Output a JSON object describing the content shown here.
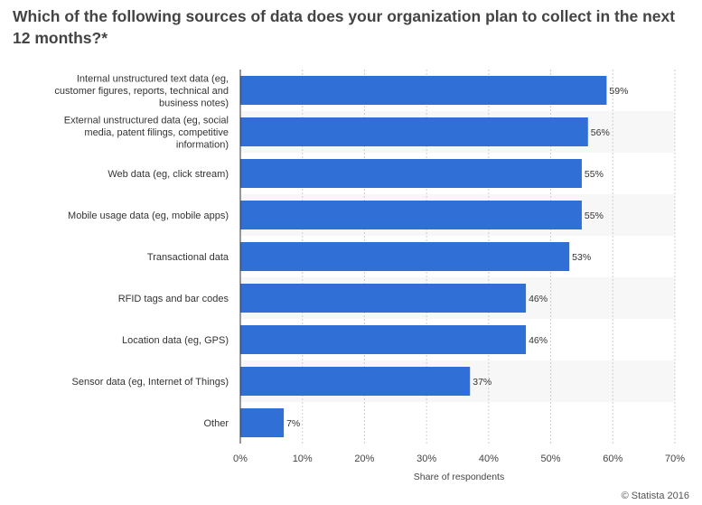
{
  "chart_data": {
    "type": "bar",
    "orientation": "horizontal",
    "title": "Which of the following sources of data does your organization plan to collect in the next 12 months?*",
    "categories": [
      [
        "Internal unstructured text data (eg,",
        "customer figures, reports, technical and",
        "business notes)"
      ],
      [
        "External unstructured data (eg, social",
        "media, patent filings, competitive",
        "information)"
      ],
      [
        "Web data (eg, click stream)"
      ],
      [
        "Mobile usage data (eg, mobile apps)"
      ],
      [
        "Transactional data"
      ],
      [
        "RFID tags and bar codes"
      ],
      [
        "Location data (eg, GPS)"
      ],
      [
        "Sensor data (eg, Internet of Things)"
      ],
      [
        "Other"
      ]
    ],
    "values": [
      59,
      56,
      55,
      55,
      53,
      46,
      46,
      37,
      7
    ],
    "data_labels": [
      "59%",
      "56%",
      "55%",
      "55%",
      "53%",
      "46%",
      "46%",
      "37%",
      "7%"
    ],
    "xlabel": "Share of respondents",
    "ylabel": "",
    "xlim": [
      0,
      70
    ],
    "x_ticks": [
      0,
      10,
      20,
      30,
      40,
      50,
      60,
      70
    ],
    "x_tick_labels": [
      "0%",
      "10%",
      "20%",
      "30%",
      "40%",
      "50%",
      "60%",
      "70%"
    ],
    "grid": true,
    "bar_color": "#2f6fd6",
    "band_color": "#f7f7f7"
  },
  "credit": "© Statista 2016"
}
